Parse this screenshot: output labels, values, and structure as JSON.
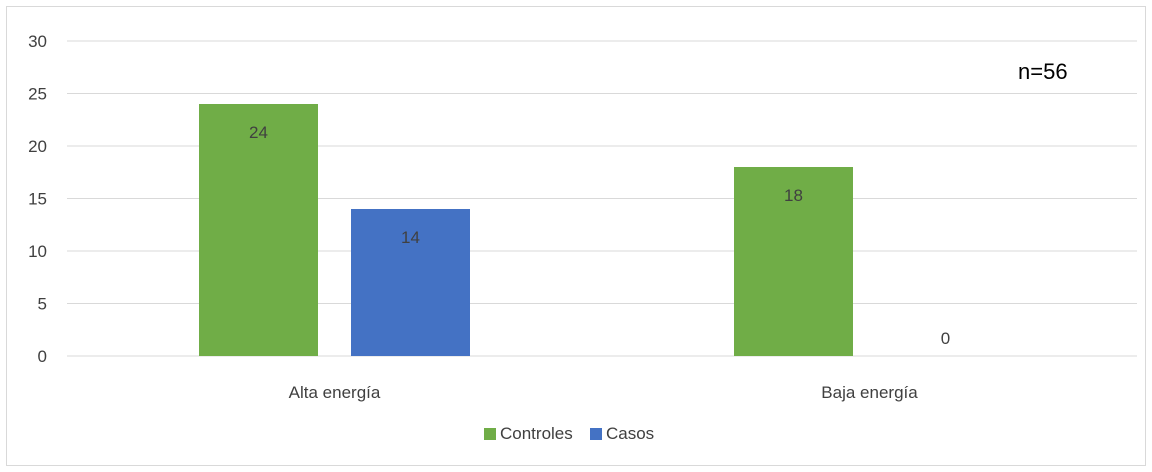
{
  "chart_data": {
    "type": "bar",
    "categories": [
      "Alta energía",
      "Baja energía"
    ],
    "series": [
      {
        "name": "Controles",
        "values": [
          24,
          18
        ],
        "color": "#70ad47"
      },
      {
        "name": "Casos",
        "values": [
          14,
          0
        ],
        "color": "#4472c4"
      }
    ],
    "ylim": [
      0,
      30
    ],
    "y_ticks": [
      0,
      5,
      10,
      15,
      20,
      25,
      30
    ],
    "grid": true,
    "legend_position": "bottom",
    "annotation": "n=56",
    "title": "",
    "xlabel": "",
    "ylabel": ""
  }
}
